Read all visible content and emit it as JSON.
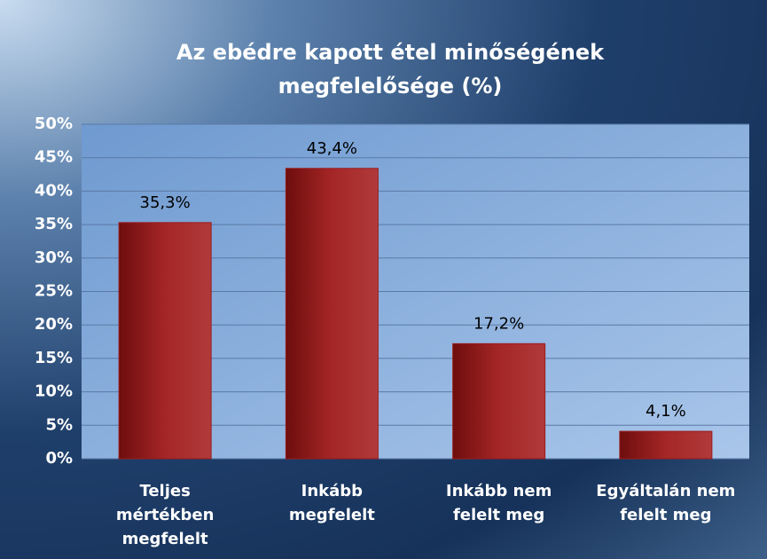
{
  "chart_data": {
    "type": "bar",
    "title": "Az ebédre kapott étel minőségének megfelelősége (%)",
    "categories": [
      "Teljes mértékben megfelelt",
      "Inkább megfelelt",
      "Inkább nem felelt meg",
      "Egyáltalán nem felelt meg"
    ],
    "values": [
      35.3,
      43.4,
      17.2,
      4.1
    ],
    "value_labels": [
      "35,3%",
      "43,4%",
      "17,2%",
      "4,1%"
    ],
    "color": "#9b1c1c",
    "ylim": [
      0,
      50
    ],
    "yticks": [
      {
        "value": 0,
        "label": "0%"
      },
      {
        "value": 5,
        "label": "5%"
      },
      {
        "value": 10,
        "label": "10%"
      },
      {
        "value": 15,
        "label": "15%"
      },
      {
        "value": 20,
        "label": "20%"
      },
      {
        "value": 25,
        "label": "25%"
      },
      {
        "value": 30,
        "label": "30%"
      },
      {
        "value": 35,
        "label": "35%"
      },
      {
        "value": 40,
        "label": "40%"
      },
      {
        "value": 45,
        "label": "45%"
      },
      {
        "value": 50,
        "label": "50%"
      }
    ],
    "grid": true
  }
}
